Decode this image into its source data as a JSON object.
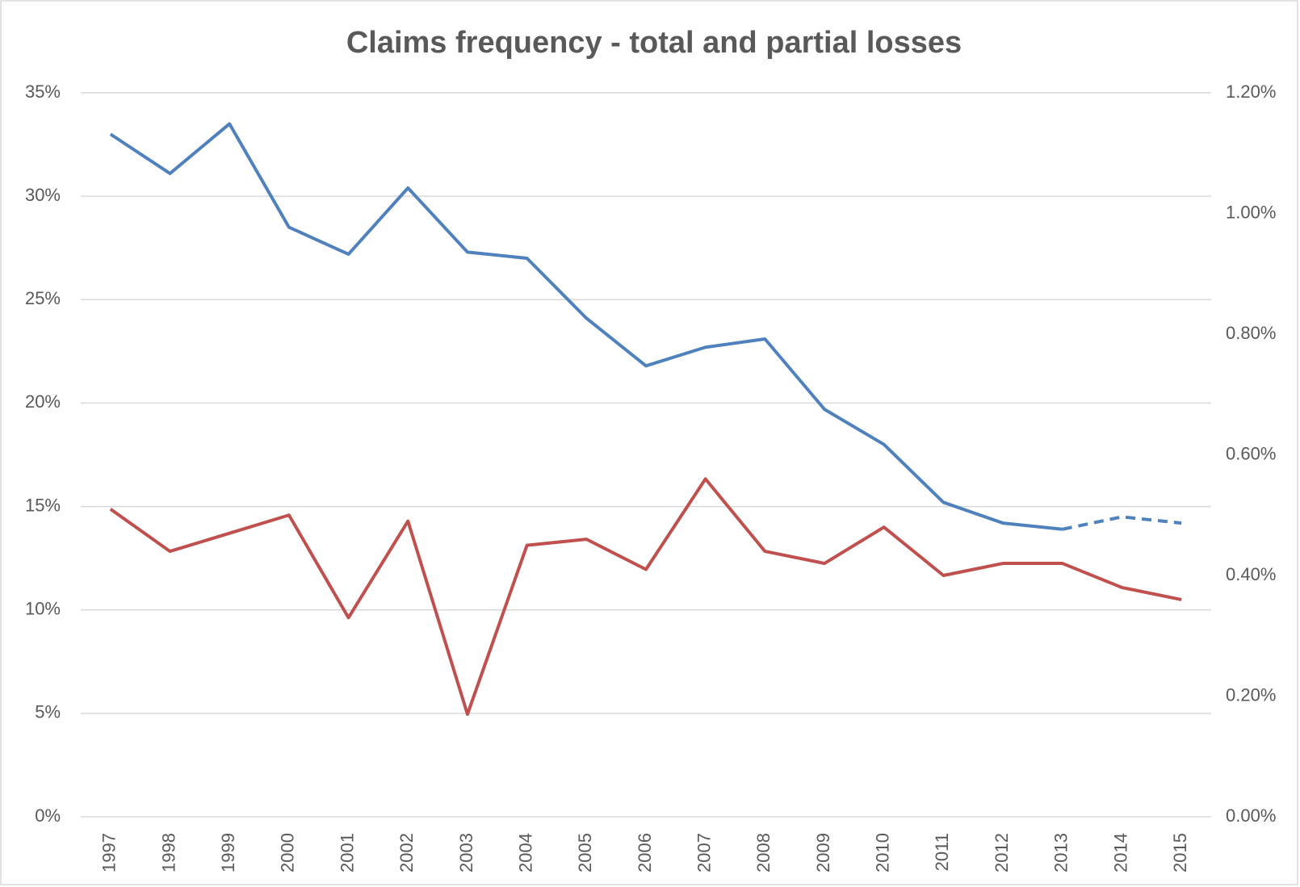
{
  "chart_data": {
    "type": "line",
    "title": "Claims frequency - total and partial losses",
    "categories": [
      "1997",
      "1998",
      "1999",
      "2000",
      "2001",
      "2002",
      "2003",
      "2004",
      "2005",
      "2006",
      "2007",
      "2008",
      "2009",
      "2010",
      "2011",
      "2012",
      "2013",
      "2014",
      "2015"
    ],
    "series": [
      {
        "color": "#4f81bd",
        "axis": "y",
        "dash": false,
        "values": [
          33.0,
          31.1,
          33.5,
          28.5,
          27.2,
          30.4,
          27.3,
          27.0,
          24.1,
          21.8,
          22.7,
          23.1,
          19.7,
          18.0,
          15.2,
          14.2,
          13.9,
          null,
          null
        ]
      },
      {
        "color": "#4f81bd",
        "axis": "y",
        "dash": true,
        "values": [
          null,
          null,
          null,
          null,
          null,
          null,
          null,
          null,
          null,
          null,
          null,
          null,
          null,
          null,
          null,
          null,
          13.9,
          14.5,
          14.2
        ]
      },
      {
        "color": "#c0504d",
        "axis": "y2",
        "dash": false,
        "values": [
          0.51,
          0.44,
          0.47,
          0.5,
          0.33,
          0.49,
          0.17,
          0.45,
          0.46,
          0.41,
          0.56,
          0.44,
          0.42,
          0.48,
          0.4,
          0.42,
          0.42,
          0.38,
          0.36
        ]
      }
    ],
    "ylim": [
      0,
      35
    ],
    "yticks": [
      {
        "value": 0,
        "label": "0%"
      },
      {
        "value": 5,
        "label": "5%"
      },
      {
        "value": 10,
        "label": "10%"
      },
      {
        "value": 15,
        "label": "15%"
      },
      {
        "value": 20,
        "label": "20%"
      },
      {
        "value": 25,
        "label": "25%"
      },
      {
        "value": 30,
        "label": "30%"
      },
      {
        "value": 35,
        "label": "35%"
      }
    ],
    "y2lim": [
      0,
      1.2
    ],
    "y2ticks": [
      {
        "value": 0,
        "label": "0.00%"
      },
      {
        "value": 0.2,
        "label": "0.20%"
      },
      {
        "value": 0.4,
        "label": "0.40%"
      },
      {
        "value": 0.6,
        "label": "0.60%"
      },
      {
        "value": 0.8,
        "label": "0.80%"
      },
      {
        "value": 1.0,
        "label": "1.00%"
      },
      {
        "value": 1.2,
        "label": "1.20%"
      }
    ],
    "grid": true
  }
}
